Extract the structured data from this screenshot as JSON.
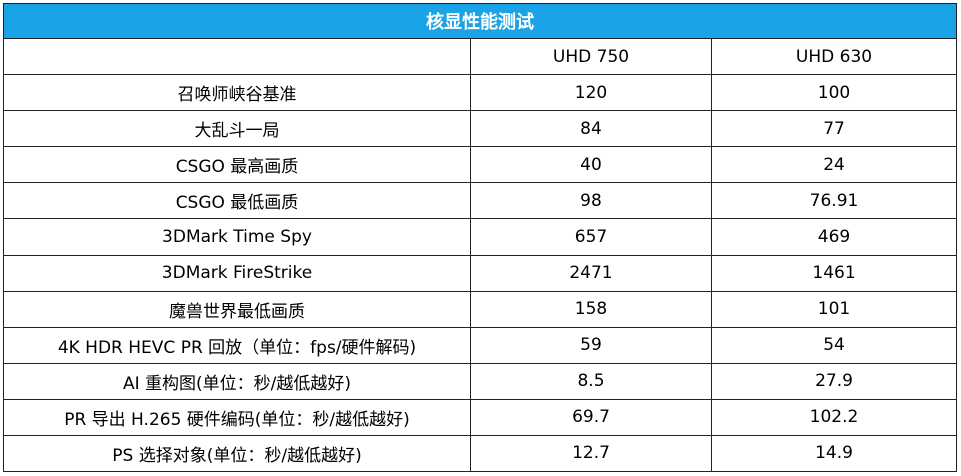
{
  "table": {
    "title": "核显性能测试",
    "columns": [
      "",
      "UHD 750",
      "UHD 630"
    ],
    "rows": [
      {
        "label": "召唤师峡谷基准",
        "uhd750": "120",
        "uhd630": "100"
      },
      {
        "label": "大乱斗一局",
        "uhd750": "84",
        "uhd630": "77"
      },
      {
        "label": "CSGO 最高画质",
        "uhd750": "40",
        "uhd630": "24"
      },
      {
        "label": "CSGO 最低画质",
        "uhd750": "98",
        "uhd630": "76.91"
      },
      {
        "label": "3DMark Time Spy",
        "uhd750": "657",
        "uhd630": "469"
      },
      {
        "label": "3DMark FireStrike",
        "uhd750": "2471",
        "uhd630": "1461"
      },
      {
        "label": "魔兽世界最低画质",
        "uhd750": "158",
        "uhd630": "101"
      },
      {
        "label": "4K HDR HEVC PR 回放（单位：fps/硬件解码)",
        "uhd750": "59",
        "uhd630": "54"
      },
      {
        "label": "AI 重构图(单位：秒/越低越好)",
        "uhd750": "8.5",
        "uhd630": "27.9"
      },
      {
        "label": "PR 导出 H.265 硬件编码(单位：秒/越低越好)",
        "uhd750": "69.7",
        "uhd630": "102.2"
      },
      {
        "label": "PS 选择对象(单位：秒/越低越好)",
        "uhd750": "12.7",
        "uhd630": "14.9"
      }
    ]
  },
  "colors": {
    "title_bg": "#1aa3e6",
    "title_text": "#ffffff",
    "border": "#222222"
  }
}
